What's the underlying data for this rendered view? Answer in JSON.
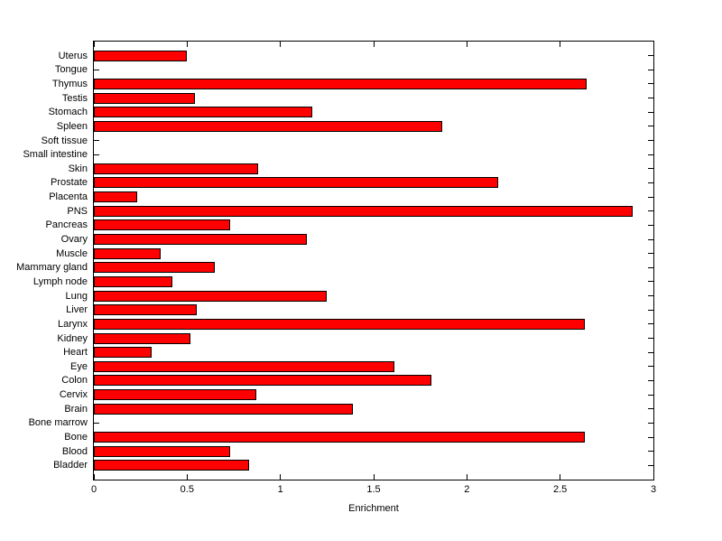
{
  "chart_data": {
    "type": "bar",
    "orientation": "horizontal",
    "title": "",
    "xlabel": "Enrichment",
    "ylabel": "",
    "xlim": [
      0,
      3
    ],
    "xticks": [
      "0",
      "0.5",
      "1",
      "1.5",
      "2",
      "2.5",
      "3"
    ],
    "grid": false,
    "legend": null,
    "bar_color": "#ff0000",
    "bar_edge_color": "#000000",
    "background_color": "#ffffff",
    "categories": [
      "Uterus",
      "Tongue",
      "Thymus",
      "Testis",
      "Stomach",
      "Spleen",
      "Soft tissue",
      "Small intestine",
      "Skin",
      "Prostate",
      "Placenta",
      "PNS",
      "Pancreas",
      "Ovary",
      "Muscle",
      "Mammary gland",
      "Lymph node",
      "Lung",
      "Liver",
      "Larynx",
      "Kidney",
      "Heart",
      "Eye",
      "Colon",
      "Cervix",
      "Brain",
      "Bone marrow",
      "Bone",
      "Blood",
      "Bladder"
    ],
    "values": [
      0.5,
      0,
      2.64,
      0.54,
      1.17,
      1.87,
      0,
      0,
      0.88,
      2.17,
      0.23,
      2.89,
      0.73,
      1.14,
      0.36,
      0.65,
      0.42,
      1.25,
      0.55,
      2.63,
      0.52,
      0.31,
      1.61,
      1.81,
      0.87,
      1.39,
      0,
      2.63,
      0.73,
      0.83
    ]
  }
}
